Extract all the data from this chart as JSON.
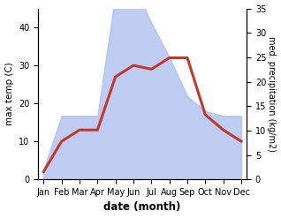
{
  "months": [
    "Jan",
    "Feb",
    "Mar",
    "Apr",
    "May",
    "Jun",
    "Jul",
    "Aug",
    "Sep",
    "Oct",
    "Nov",
    "Dec"
  ],
  "month_indices": [
    0,
    1,
    2,
    3,
    4,
    5,
    6,
    7,
    8,
    9,
    10,
    11
  ],
  "temperature": [
    2,
    10,
    13,
    13,
    27,
    30,
    29,
    32,
    32,
    17,
    13,
    10
  ],
  "precipitation": [
    2,
    13,
    13,
    13,
    38,
    40,
    32,
    25,
    17,
    14,
    13,
    13
  ],
  "temp_ylim": [
    0,
    45
  ],
  "precip_ylim": [
    0,
    35
  ],
  "temp_yticks": [
    0,
    10,
    20,
    30,
    40
  ],
  "precip_yticks": [
    0,
    5,
    10,
    15,
    20,
    25,
    30,
    35
  ],
  "temp_color": "#c0392b",
  "precip_fill_color": "#aabbee",
  "precip_fill_alpha": 0.75,
  "ylabel_left": "max temp (C)",
  "ylabel_right": "med. precipitation (kg/m2)",
  "xlabel": "date (month)",
  "background_color": "#ffffff"
}
